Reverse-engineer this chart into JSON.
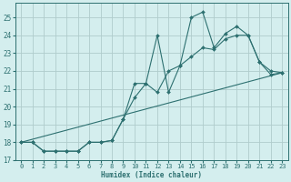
{
  "xlabel": "Humidex (Indice chaleur)",
  "background_color": "#d4eeee",
  "grid_color": "#b0cccc",
  "line_color": "#2d7070",
  "xlim": [
    -0.5,
    23.5
  ],
  "ylim": [
    17.0,
    25.8
  ],
  "yticks": [
    17,
    18,
    19,
    20,
    21,
    22,
    23,
    24,
    25
  ],
  "xticks": [
    0,
    1,
    2,
    3,
    4,
    5,
    6,
    7,
    8,
    9,
    10,
    11,
    12,
    13,
    14,
    15,
    16,
    17,
    18,
    19,
    20,
    21,
    22,
    23
  ],
  "line1_x": [
    0,
    1,
    2,
    3,
    4,
    5,
    6,
    7,
    8,
    9,
    10,
    11,
    12,
    13,
    14,
    15,
    16,
    17,
    18,
    19,
    20,
    21,
    22,
    23
  ],
  "line1_y": [
    18.0,
    18.0,
    17.5,
    17.5,
    17.5,
    17.5,
    18.0,
    18.0,
    18.1,
    19.3,
    20.5,
    21.3,
    20.8,
    22.0,
    22.3,
    22.8,
    23.3,
    23.2,
    23.8,
    24.0,
    24.0,
    22.5,
    21.8,
    21.9
  ],
  "line2_x": [
    0,
    1,
    2,
    3,
    4,
    5,
    6,
    7,
    8,
    9,
    10,
    11,
    12,
    13,
    14,
    15,
    16,
    17,
    18,
    19,
    20,
    21,
    22,
    23
  ],
  "line2_y": [
    18.0,
    18.0,
    17.5,
    17.5,
    17.5,
    17.5,
    18.0,
    18.0,
    18.1,
    19.3,
    21.3,
    21.3,
    24.0,
    20.8,
    22.3,
    25.0,
    25.3,
    23.3,
    24.1,
    24.5,
    24.0,
    22.5,
    22.0,
    21.9
  ],
  "line3_x": [
    0,
    23
  ],
  "line3_y": [
    18.0,
    21.9
  ]
}
